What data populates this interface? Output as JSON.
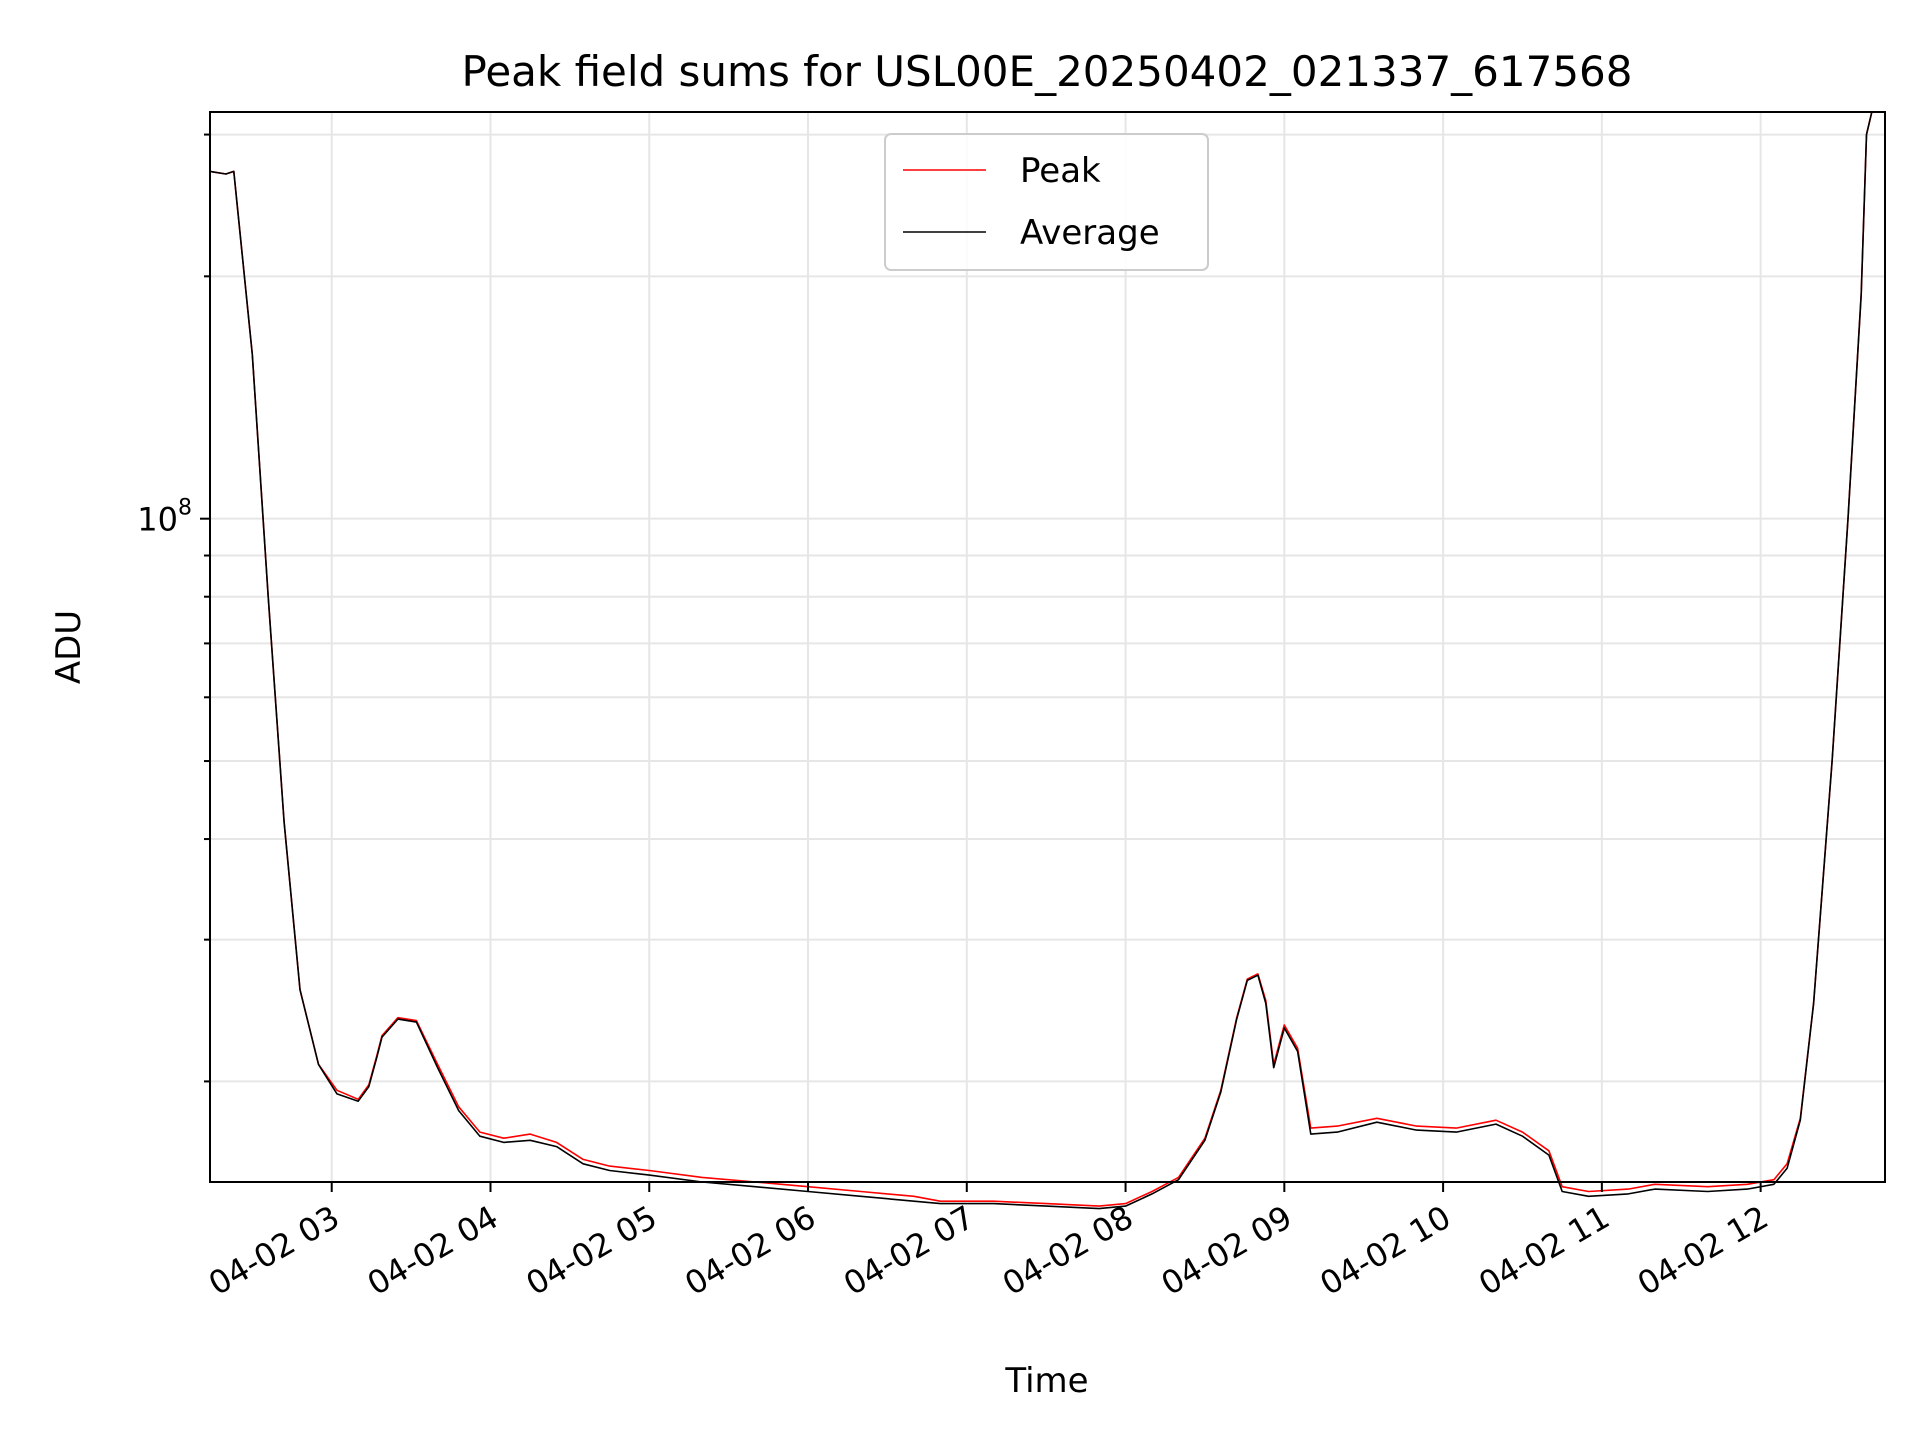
{
  "chart_data": {
    "type": "line",
    "title": "Peak field sums for USL00E_20250402_021337_617568",
    "xlabel": "Time",
    "ylabel": "ADU",
    "y_scale": "log",
    "grid": true,
    "legend_placement": "top-center",
    "x_tick_labels": [
      "04-02 03",
      "04-02 04",
      "04-02 05",
      "04-02 06",
      "04-02 07",
      "04-02 08",
      "04-02 09",
      "04-02 10",
      "04-02 11",
      "04-02 12"
    ],
    "x_ticks": [
      "2025-04-02T03:00",
      "2025-04-02T04:00",
      "2025-04-02T05:00",
      "2025-04-02T06:00",
      "2025-04-02T07:00",
      "2025-04-02T08:00",
      "2025-04-02T09:00",
      "2025-04-02T10:00",
      "2025-04-02T11:00",
      "2025-04-02T12:00"
    ],
    "xlim": [
      "2025-04-02T02:14",
      "2025-04-02T12:47"
    ],
    "y_major_tick": {
      "value": 100000000,
      "label_base": "10",
      "label_exponent": "8"
    },
    "ylim": [
      15000000,
      320000000
    ],
    "series": [
      {
        "name": "Peak",
        "color": "#ff0000",
        "x": [
          "2025-04-02T02:14",
          "2025-04-02T02:20",
          "2025-04-02T02:23",
          "2025-04-02T02:30",
          "2025-04-02T02:36",
          "2025-04-02T02:42",
          "2025-04-02T02:48",
          "2025-04-02T02:55",
          "2025-04-02T03:02",
          "2025-04-02T03:10",
          "2025-04-02T03:14",
          "2025-04-02T03:17",
          "2025-04-02T03:19",
          "2025-04-02T03:25",
          "2025-04-02T03:32",
          "2025-04-02T03:40",
          "2025-04-02T03:48",
          "2025-04-02T03:56",
          "2025-04-02T04:05",
          "2025-04-02T04:15",
          "2025-04-02T04:25",
          "2025-04-02T04:35",
          "2025-04-02T04:45",
          "2025-04-02T05:00",
          "2025-04-02T05:20",
          "2025-04-02T05:40",
          "2025-04-02T06:00",
          "2025-04-02T06:20",
          "2025-04-02T06:40",
          "2025-04-02T06:50",
          "2025-04-02T07:10",
          "2025-04-02T07:30",
          "2025-04-02T07:50",
          "2025-04-02T08:00",
          "2025-04-02T08:10",
          "2025-04-02T08:20",
          "2025-04-02T08:30",
          "2025-04-02T08:36",
          "2025-04-02T08:42",
          "2025-04-02T08:46",
          "2025-04-02T08:50",
          "2025-04-02T08:53",
          "2025-04-02T08:56",
          "2025-04-02T09:00",
          "2025-04-02T09:05",
          "2025-04-02T09:10",
          "2025-04-02T09:20",
          "2025-04-02T09:35",
          "2025-04-02T09:50",
          "2025-04-02T10:05",
          "2025-04-02T10:20",
          "2025-04-02T10:30",
          "2025-04-02T10:40",
          "2025-04-02T10:45",
          "2025-04-02T10:55",
          "2025-04-02T11:10",
          "2025-04-02T11:20",
          "2025-04-02T11:40",
          "2025-04-02T11:55",
          "2025-04-02T12:05",
          "2025-04-02T12:10",
          "2025-04-02T12:15",
          "2025-04-02T12:20",
          "2025-04-02T12:27",
          "2025-04-02T12:33",
          "2025-04-02T12:38",
          "2025-04-02T12:40",
          "2025-04-02T12:42"
        ],
        "y": [
          270000000,
          268000000,
          270000000,
          160000000,
          80000000,
          42000000,
          26000000,
          21000000,
          19500000,
          19000000,
          19800000,
          21500000,
          22800000,
          24000000,
          23800000,
          21000000,
          18600000,
          17300000,
          17000000,
          17200000,
          16800000,
          16000000,
          15700000,
          15500000,
          15200000,
          15000000,
          14800000,
          14600000,
          14400000,
          14200000,
          14200000,
          14100000,
          14000000,
          14100000,
          14600000,
          15200000,
          17000000,
          19500000,
          24000000,
          26800000,
          27200000,
          25200000,
          21000000,
          23500000,
          22000000,
          17500000,
          17600000,
          18000000,
          17600000,
          17500000,
          17900000,
          17300000,
          16400000,
          14800000,
          14600000,
          14700000,
          14900000,
          14800000,
          14900000,
          15100000,
          15800000,
          18000000,
          25000000,
          50000000,
          100000000,
          190000000,
          300000000,
          320000000
        ]
      },
      {
        "name": "Average",
        "color": "#000000",
        "x": [
          "2025-04-02T02:14",
          "2025-04-02T02:20",
          "2025-04-02T02:23",
          "2025-04-02T02:30",
          "2025-04-02T02:36",
          "2025-04-02T02:42",
          "2025-04-02T02:48",
          "2025-04-02T02:55",
          "2025-04-02T03:02",
          "2025-04-02T03:10",
          "2025-04-02T03:14",
          "2025-04-02T03:17",
          "2025-04-02T03:19",
          "2025-04-02T03:25",
          "2025-04-02T03:32",
          "2025-04-02T03:40",
          "2025-04-02T03:48",
          "2025-04-02T03:56",
          "2025-04-02T04:05",
          "2025-04-02T04:15",
          "2025-04-02T04:25",
          "2025-04-02T04:35",
          "2025-04-02T04:45",
          "2025-04-02T05:00",
          "2025-04-02T05:20",
          "2025-04-02T05:40",
          "2025-04-02T06:00",
          "2025-04-02T06:20",
          "2025-04-02T06:40",
          "2025-04-02T06:50",
          "2025-04-02T07:10",
          "2025-04-02T07:30",
          "2025-04-02T07:50",
          "2025-04-02T08:00",
          "2025-04-02T08:10",
          "2025-04-02T08:20",
          "2025-04-02T08:30",
          "2025-04-02T08:36",
          "2025-04-02T08:42",
          "2025-04-02T08:46",
          "2025-04-02T08:50",
          "2025-04-02T08:53",
          "2025-04-02T08:56",
          "2025-04-02T09:00",
          "2025-04-02T09:05",
          "2025-04-02T09:10",
          "2025-04-02T09:20",
          "2025-04-02T09:35",
          "2025-04-02T09:50",
          "2025-04-02T10:05",
          "2025-04-02T10:20",
          "2025-04-02T10:30",
          "2025-04-02T10:40",
          "2025-04-02T10:45",
          "2025-04-02T10:55",
          "2025-04-02T11:10",
          "2025-04-02T11:20",
          "2025-04-02T11:40",
          "2025-04-02T11:55",
          "2025-04-02T12:05",
          "2025-04-02T12:10",
          "2025-04-02T12:15",
          "2025-04-02T12:20",
          "2025-04-02T12:27",
          "2025-04-02T12:33",
          "2025-04-02T12:38",
          "2025-04-02T12:40",
          "2025-04-02T12:42"
        ],
        "y": [
          270000000,
          268000000,
          270000000,
          160000000,
          80000000,
          42000000,
          26000000,
          21000000,
          19300000,
          18900000,
          19700000,
          21400000,
          22700000,
          23900000,
          23700000,
          20800000,
          18400000,
          17100000,
          16800000,
          16900000,
          16600000,
          15800000,
          15500000,
          15300000,
          15000000,
          14800000,
          14600000,
          14400000,
          14200000,
          14100000,
          14100000,
          14000000,
          13900000,
          14000000,
          14500000,
          15100000,
          16900000,
          19400000,
          23900000,
          26700000,
          27100000,
          25000000,
          20800000,
          23300000,
          21800000,
          17200000,
          17300000,
          17800000,
          17400000,
          17300000,
          17700000,
          17100000,
          16200000,
          14600000,
          14400000,
          14500000,
          14700000,
          14600000,
          14700000,
          14900000,
          15600000,
          17900000,
          25000000,
          50000000,
          100000000,
          190000000,
          300000000,
          320000000
        ]
      }
    ]
  }
}
